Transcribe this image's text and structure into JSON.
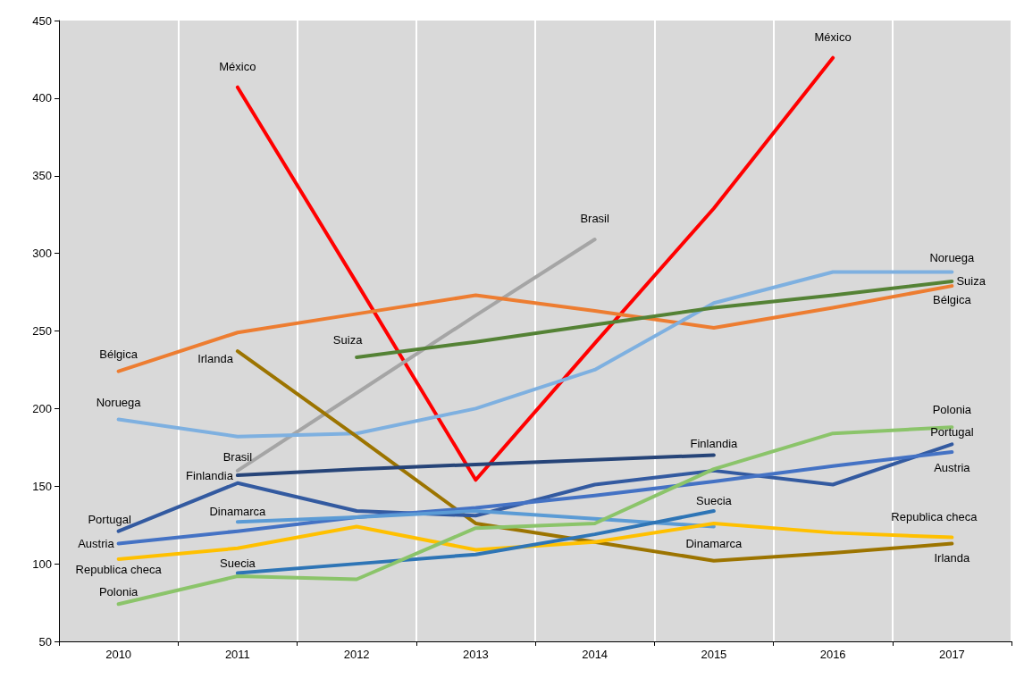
{
  "chart_data": {
    "type": "line",
    "categories": [
      "2010",
      "2011",
      "2012",
      "2013",
      "2014",
      "2015",
      "2016",
      "2017"
    ],
    "ylim": [
      50,
      450
    ],
    "yticks": [
      50,
      100,
      150,
      200,
      250,
      300,
      350,
      400,
      450
    ],
    "grid": "x",
    "legend": false,
    "marker": "none",
    "line_style": "solid",
    "series": [
      {
        "name": "México",
        "color": "#ff0000",
        "values": [
          null,
          407,
          281,
          154,
          242,
          329,
          426,
          null
        ]
      },
      {
        "name": "Brasil",
        "color": "#a5a5a5",
        "values": [
          null,
          160,
          210,
          260,
          309,
          null,
          null,
          null
        ]
      },
      {
        "name": "Bélgica",
        "color": "#ed7d31",
        "values": [
          224,
          249,
          261,
          273,
          263,
          252,
          265,
          279
        ]
      },
      {
        "name": "Noruega",
        "color": "#7eb0e0",
        "values": [
          193,
          182,
          184,
          200,
          225,
          268,
          288,
          288
        ]
      },
      {
        "name": "Suiza",
        "color": "#548235",
        "values": [
          null,
          null,
          233,
          243,
          254,
          265,
          273,
          282
        ]
      },
      {
        "name": "Irlanda",
        "color": "#9c7400",
        "values": [
          null,
          237,
          182,
          126,
          114,
          102,
          107,
          113
        ]
      },
      {
        "name": "Finlandia",
        "color": "#264478",
        "values": [
          null,
          157,
          161,
          164,
          167,
          170,
          null,
          null
        ]
      },
      {
        "name": "Portugal",
        "color": "#335aa0",
        "values": [
          121,
          152,
          134,
          131,
          151,
          160,
          151,
          177
        ]
      },
      {
        "name": "Austria",
        "color": "#4472c4",
        "values": [
          113,
          121,
          130,
          136,
          144,
          153,
          163,
          172
        ]
      },
      {
        "name": "Dinamarca",
        "color": "#5b9bd5",
        "values": [
          null,
          127,
          130,
          134,
          129,
          124,
          null,
          null
        ]
      },
      {
        "name": "Republica checa",
        "color": "#ffc000",
        "values": [
          103,
          110,
          124,
          109,
          114,
          126,
          120,
          117
        ]
      },
      {
        "name": "Suecia",
        "color": "#2e75b6",
        "values": [
          null,
          94,
          100,
          106,
          119,
          134,
          null,
          null
        ]
      },
      {
        "name": "Polonia",
        "color": "#8bc46a",
        "values": [
          74,
          92,
          90,
          123,
          126,
          161,
          184,
          188
        ]
      }
    ]
  }
}
